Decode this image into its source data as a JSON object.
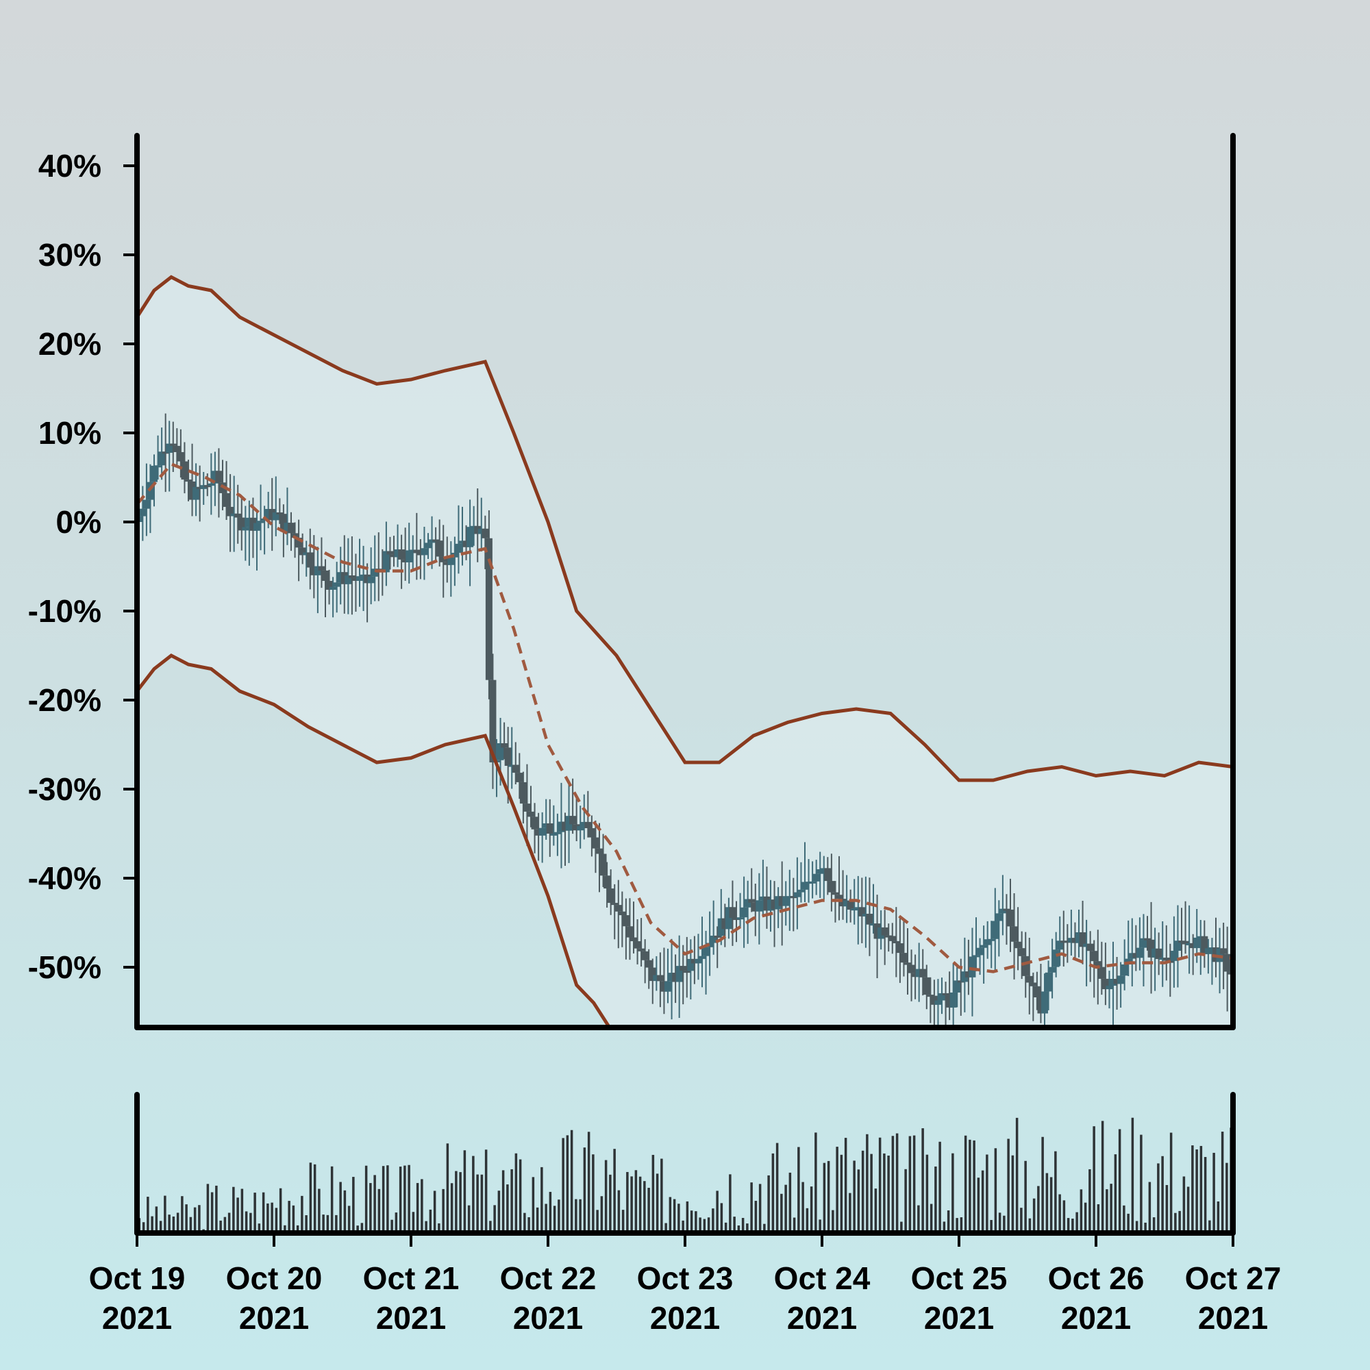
{
  "chart_data": {
    "type": "candlestick",
    "title": "",
    "xlabel": "",
    "ylabel": "",
    "y_tick_labels": [
      "40%",
      "30%",
      "20%",
      "10%",
      "0%",
      "-10%",
      "-20%",
      "-30%",
      "-40%",
      "-50%"
    ],
    "y_ticks": [
      40,
      30,
      20,
      10,
      0,
      -10,
      -20,
      -30,
      -40,
      -50
    ],
    "ylim": [
      -56,
      44
    ],
    "x_ticks": [
      {
        "date": "2021-10-19",
        "line1": "Oct 19",
        "line2": "2021"
      },
      {
        "date": "2021-10-20",
        "line1": "Oct 20",
        "line2": "2021"
      },
      {
        "date": "2021-10-21",
        "line1": "Oct 21",
        "line2": "2021"
      },
      {
        "date": "2021-10-22",
        "line1": "Oct 22",
        "line2": "2021"
      },
      {
        "date": "2021-10-23",
        "line1": "Oct 23",
        "line2": "2021"
      },
      {
        "date": "2021-10-24",
        "line1": "Oct 24",
        "line2": "2021"
      },
      {
        "date": "2021-10-25",
        "line1": "Oct 25",
        "line2": "2021"
      },
      {
        "date": "2021-10-26",
        "line1": "Oct 26",
        "line2": "2021"
      },
      {
        "date": "2021-10-27",
        "line1": "Oct 27",
        "line2": "2021"
      }
    ],
    "xlim": [
      "2021-10-19T00:00",
      "2021-10-27T00:00"
    ],
    "grid": false,
    "colors": {
      "candle": "#3f6b78",
      "candle_down": "#4d5a5f",
      "band": "#8a3a1e",
      "moving_average": "#a05a40",
      "volume": "#2e3336",
      "axes": "#000000",
      "band_fill": "#dbeaec"
    },
    "price_path": [
      [
        "2021-10-19T00:00",
        0
      ],
      [
        "2021-10-19T03:00",
        6
      ],
      [
        "2021-10-19T06:00",
        10
      ],
      [
        "2021-10-19T08:00",
        5
      ],
      [
        "2021-10-19T10:00",
        3
      ],
      [
        "2021-10-19T14:00",
        5
      ],
      [
        "2021-10-19T17:00",
        0
      ],
      [
        "2021-10-19T21:00",
        0
      ],
      [
        "2021-10-20T00:00",
        1
      ],
      [
        "2021-10-20T04:00",
        -2
      ],
      [
        "2021-10-20T07:00",
        -5
      ],
      [
        "2021-10-20T10:00",
        -7
      ],
      [
        "2021-10-20T13:00",
        -6
      ],
      [
        "2021-10-20T16:00",
        -7
      ],
      [
        "2021-10-20T20:00",
        -4
      ],
      [
        "2021-10-21T00:00",
        -4
      ],
      [
        "2021-10-21T03:00",
        -2
      ],
      [
        "2021-10-21T06:00",
        -4
      ],
      [
        "2021-10-21T09:00",
        -3
      ],
      [
        "2021-10-21T11:00",
        0
      ],
      [
        "2021-10-21T13:00",
        -2
      ],
      [
        "2021-10-21T14:00",
        -27
      ],
      [
        "2021-10-21T16:00",
        -25
      ],
      [
        "2021-10-21T19:00",
        -30
      ],
      [
        "2021-10-21T22:00",
        -35
      ],
      [
        "2021-10-22T00:00",
        -34
      ],
      [
        "2021-10-22T04:00",
        -34
      ],
      [
        "2021-10-22T08:00",
        -35
      ],
      [
        "2021-10-22T11:00",
        -42
      ],
      [
        "2021-10-22T15:00",
        -47
      ],
      [
        "2021-10-22T18:00",
        -51
      ],
      [
        "2021-10-22T21:00",
        -52
      ],
      [
        "2021-10-23T00:00",
        -50
      ],
      [
        "2021-10-23T04:00",
        -47
      ],
      [
        "2021-10-23T08:00",
        -44
      ],
      [
        "2021-10-23T12:00",
        -43
      ],
      [
        "2021-10-23T16:00",
        -43
      ],
      [
        "2021-10-23T20:00",
        -42
      ],
      [
        "2021-10-24T00:00",
        -38
      ],
      [
        "2021-10-24T03:00",
        -43
      ],
      [
        "2021-10-24T07:00",
        -44
      ],
      [
        "2021-10-24T11:00",
        -47
      ],
      [
        "2021-10-24T15:00",
        -49
      ],
      [
        "2021-10-24T19:00",
        -53
      ],
      [
        "2021-10-24T22:00",
        -54
      ],
      [
        "2021-10-25T02:00",
        -50
      ],
      [
        "2021-10-25T05:00",
        -47
      ],
      [
        "2021-10-25T08:00",
        -43
      ],
      [
        "2021-10-25T11:00",
        -49
      ],
      [
        "2021-10-25T14:00",
        -55
      ],
      [
        "2021-10-25T17:00",
        -48
      ],
      [
        "2021-10-25T20:00",
        -46
      ],
      [
        "2021-10-25T23:00",
        -49
      ],
      [
        "2021-10-26T02:00",
        -52
      ],
      [
        "2021-10-26T05:00",
        -50
      ],
      [
        "2021-10-26T08:00",
        -47
      ],
      [
        "2021-10-26T11:00",
        -49
      ],
      [
        "2021-10-26T14:00",
        -48
      ],
      [
        "2021-10-26T17:00",
        -47
      ],
      [
        "2021-10-26T20:00",
        -48
      ],
      [
        "2021-10-26T22:00",
        -49
      ],
      [
        "2021-10-27T00:00",
        -51
      ]
    ],
    "moving_average": [
      [
        "2021-10-19T00:00",
        2
      ],
      [
        "2021-10-19T06:00",
        6.5
      ],
      [
        "2021-10-19T12:00",
        5
      ],
      [
        "2021-10-19T18:00",
        3
      ],
      [
        "2021-10-20T00:00",
        -0.5
      ],
      [
        "2021-10-20T06:00",
        -2.5
      ],
      [
        "2021-10-20T12:00",
        -4.5
      ],
      [
        "2021-10-20T18:00",
        -5.5
      ],
      [
        "2021-10-21T00:00",
        -5.5
      ],
      [
        "2021-10-21T06:00",
        -4
      ],
      [
        "2021-10-21T13:00",
        -3
      ],
      [
        "2021-10-21T18:00",
        -12
      ],
      [
        "2021-10-22T00:00",
        -25
      ],
      [
        "2021-10-22T06:00",
        -32
      ],
      [
        "2021-10-22T12:00",
        -37
      ],
      [
        "2021-10-22T18:00",
        -45
      ],
      [
        "2021-10-23T00:00",
        -48.5
      ],
      [
        "2021-10-23T06:00",
        -47
      ],
      [
        "2021-10-23T12:00",
        -44.5
      ],
      [
        "2021-10-23T18:00",
        -43.5
      ],
      [
        "2021-10-24T00:00",
        -42.5
      ],
      [
        "2021-10-24T06:00",
        -42.5
      ],
      [
        "2021-10-24T12:00",
        -43.5
      ],
      [
        "2021-10-24T18:00",
        -46.5
      ],
      [
        "2021-10-25T00:00",
        -50
      ],
      [
        "2021-10-25T06:00",
        -50.5
      ],
      [
        "2021-10-25T12:00",
        -49.5
      ],
      [
        "2021-10-25T18:00",
        -48.5
      ],
      [
        "2021-10-26T00:00",
        -50
      ],
      [
        "2021-10-26T06:00",
        -49.5
      ],
      [
        "2021-10-26T12:00",
        -49.5
      ],
      [
        "2021-10-26T18:00",
        -48.5
      ],
      [
        "2021-10-27T00:00",
        -49
      ]
    ],
    "upper_band": [
      [
        "2021-10-19T00:00",
        23
      ],
      [
        "2021-10-19T03:00",
        26
      ],
      [
        "2021-10-19T06:00",
        27.5
      ],
      [
        "2021-10-19T09:00",
        26.5
      ],
      [
        "2021-10-19T13:00",
        26
      ],
      [
        "2021-10-19T18:00",
        23
      ],
      [
        "2021-10-20T00:00",
        21
      ],
      [
        "2021-10-20T06:00",
        19
      ],
      [
        "2021-10-20T12:00",
        17
      ],
      [
        "2021-10-20T18:00",
        15.5
      ],
      [
        "2021-10-21T00:00",
        16
      ],
      [
        "2021-10-21T06:00",
        17
      ],
      [
        "2021-10-21T13:00",
        18
      ],
      [
        "2021-10-21T18:00",
        10
      ],
      [
        "2021-10-22T00:00",
        0
      ],
      [
        "2021-10-22T05:00",
        -10
      ],
      [
        "2021-10-22T12:00",
        -15
      ],
      [
        "2021-10-22T18:00",
        -21
      ],
      [
        "2021-10-23T00:00",
        -27
      ],
      [
        "2021-10-23T06:00",
        -27
      ],
      [
        "2021-10-23T12:00",
        -24
      ],
      [
        "2021-10-23T18:00",
        -22.5
      ],
      [
        "2021-10-24T00:00",
        -21.5
      ],
      [
        "2021-10-24T06:00",
        -21
      ],
      [
        "2021-10-24T12:00",
        -21.5
      ],
      [
        "2021-10-24T18:00",
        -25
      ],
      [
        "2021-10-25T00:00",
        -29
      ],
      [
        "2021-10-25T06:00",
        -29
      ],
      [
        "2021-10-25T12:00",
        -28
      ],
      [
        "2021-10-25T18:00",
        -27.5
      ],
      [
        "2021-10-26T00:00",
        -28.5
      ],
      [
        "2021-10-26T06:00",
        -28
      ],
      [
        "2021-10-26T12:00",
        -28.5
      ],
      [
        "2021-10-26T18:00",
        -27
      ],
      [
        "2021-10-27T00:00",
        -27.5
      ]
    ],
    "lower_band": [
      [
        "2021-10-19T00:00",
        -19
      ],
      [
        "2021-10-19T03:00",
        -16.5
      ],
      [
        "2021-10-19T06:00",
        -15
      ],
      [
        "2021-10-19T09:00",
        -16
      ],
      [
        "2021-10-19T13:00",
        -16.5
      ],
      [
        "2021-10-19T18:00",
        -19
      ],
      [
        "2021-10-20T00:00",
        -20.5
      ],
      [
        "2021-10-20T06:00",
        -23
      ],
      [
        "2021-10-20T12:00",
        -25
      ],
      [
        "2021-10-20T18:00",
        -27
      ],
      [
        "2021-10-21T00:00",
        -26.5
      ],
      [
        "2021-10-21T06:00",
        -25
      ],
      [
        "2021-10-21T13:00",
        -24
      ],
      [
        "2021-10-21T18:00",
        -32
      ],
      [
        "2021-10-22T00:00",
        -42
      ],
      [
        "2021-10-22T05:00",
        -52
      ],
      [
        "2021-10-22T08:00",
        -54
      ],
      [
        "2021-10-22T11:00",
        -57
      ]
    ],
    "volume": {
      "relative_scale": true,
      "values": [
        0.3,
        0.42,
        0.58,
        0.55,
        0.72,
        0.68,
        0.85,
        0.62,
        0.7,
        0.78,
        0.9,
        0.82,
        0.95,
        0.88,
        0.98,
        0.9
      ]
    }
  }
}
